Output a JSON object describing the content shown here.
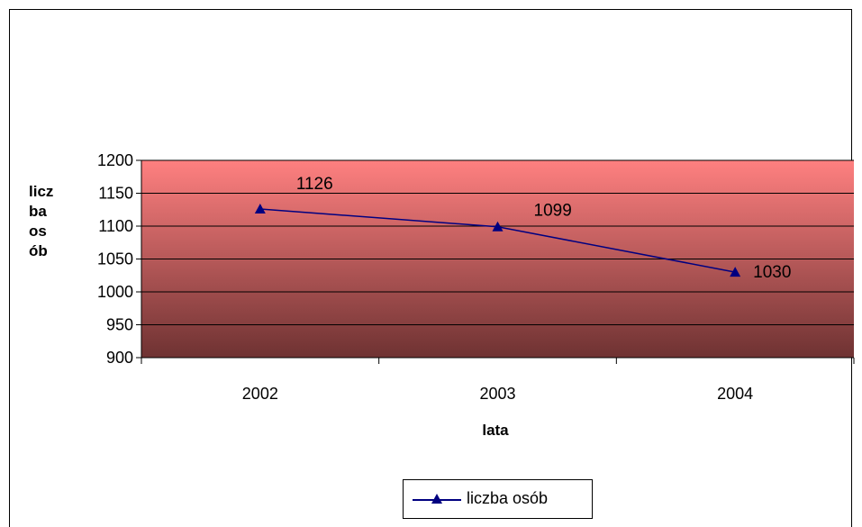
{
  "chart_data": {
    "type": "line",
    "title": "",
    "xlabel": "lata",
    "ylabel_lines": [
      "licz",
      "ba",
      "os",
      "ób"
    ],
    "categories": [
      "2002",
      "2003",
      "2004"
    ],
    "series": [
      {
        "name": "liczba osób",
        "values": [
          1126,
          1099,
          1030
        ],
        "color": "#000080",
        "marker": "triangle"
      }
    ],
    "data_labels": [
      "1126",
      "1099",
      "1030"
    ],
    "ylim": [
      900,
      1200
    ],
    "yticks": [
      900,
      950,
      1000,
      1050,
      1100,
      1150,
      1200
    ],
    "grid": true,
    "legend_position": "bottom",
    "background_gradient": [
      "#ff8080",
      "#6e3232"
    ]
  }
}
